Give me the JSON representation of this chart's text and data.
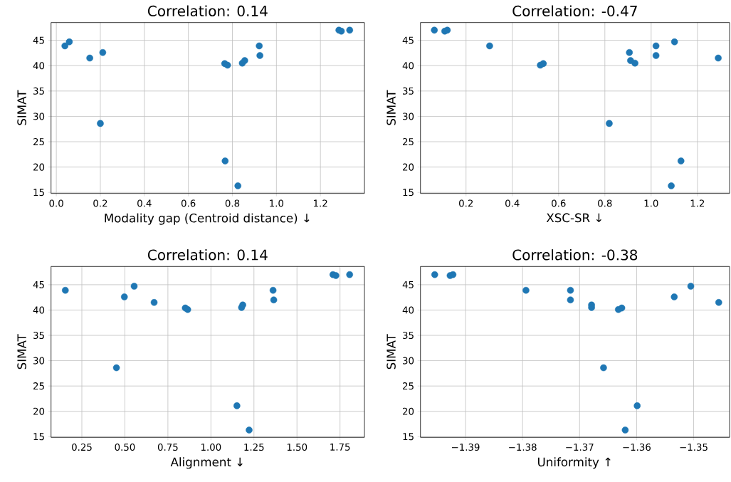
{
  "chart_data": [
    {
      "type": "scatter",
      "title": "Correlation: 0.14",
      "xlabel": "Modality gap (Centroid distance) ↓",
      "ylabel": "SIMAT",
      "color": "#1f77b4",
      "marker": "circle",
      "grid": true,
      "x": [
        0.039,
        0.059,
        0.152,
        0.211,
        0.2,
        0.765,
        0.778,
        0.767,
        0.825,
        0.845,
        0.856,
        0.922,
        0.925,
        1.284,
        1.295,
        1.333
      ],
      "values": [
        43.9,
        44.7,
        41.5,
        42.6,
        28.6,
        40.4,
        40.1,
        21.2,
        16.3,
        40.5,
        41.0,
        43.9,
        42.0,
        47.0,
        46.8,
        47.0
      ],
      "xlim": [
        -0.024,
        1.4
      ],
      "ylim": [
        14.8,
        48.5
      ],
      "xticks": [
        {
          "value": 0,
          "label": "0.0"
        },
        0.2,
        0.4,
        0.6,
        0.8,
        {
          "value": 1,
          "label": "1.0"
        },
        1.2
      ],
      "yticks": [
        15,
        20,
        25,
        30,
        35,
        40,
        45
      ]
    },
    {
      "type": "scatter",
      "title": "Correlation: -0.47",
      "xlabel": "XSC-SR ↓",
      "ylabel": "SIMAT",
      "color": "#1f77b4",
      "marker": "circle",
      "grid": true,
      "x": [
        0.063,
        0.108,
        0.119,
        0.302,
        0.521,
        0.534,
        0.819,
        0.906,
        0.911,
        0.93,
        1.021,
        1.021,
        1.101,
        1.29,
        1.129,
        1.087
      ],
      "values": [
        47.0,
        46.8,
        47.0,
        43.9,
        40.1,
        40.4,
        28.6,
        42.6,
        41.0,
        40.5,
        43.9,
        42.0,
        44.7,
        41.5,
        21.2,
        16.3
      ],
      "xlim": [
        0.003,
        1.339
      ],
      "ylim": [
        14.8,
        48.5
      ],
      "xticks": [
        0.2,
        0.4,
        0.6,
        0.8,
        {
          "value": 1,
          "label": "1.0"
        },
        1.2
      ],
      "yticks": [
        15,
        20,
        25,
        30,
        35,
        40,
        45
      ]
    },
    {
      "type": "scatter",
      "title": "Correlation: 0.14",
      "xlabel": "Alignment ↓",
      "ylabel": "SIMAT",
      "color": "#1f77b4",
      "marker": "circle",
      "grid": true,
      "x": [
        0.154,
        0.451,
        0.497,
        0.554,
        0.67,
        0.851,
        0.865,
        1.151,
        1.178,
        1.185,
        1.222,
        1.361,
        1.365,
        1.709,
        1.726,
        1.806
      ],
      "values": [
        43.9,
        28.6,
        42.6,
        44.7,
        41.5,
        40.4,
        40.1,
        21.1,
        40.5,
        41.0,
        16.3,
        43.9,
        42.0,
        47.0,
        46.8,
        47.0
      ],
      "xlim": [
        0.071,
        1.892
      ],
      "ylim": [
        14.86,
        48.6
      ],
      "xticks": [
        0.25,
        {
          "value": 0.5,
          "label": "0.50"
        },
        0.75,
        {
          "value": 1,
          "label": "1.00"
        },
        1.25,
        {
          "value": 1.5,
          "label": "1.50"
        },
        1.75
      ],
      "yticks": [
        15,
        20,
        25,
        30,
        35,
        40,
        45
      ]
    },
    {
      "type": "scatter",
      "title": "Correlation: -0.38",
      "xlabel": "Uniformity ↑",
      "ylabel": "SIMAT",
      "color": "#1f77b4",
      "marker": "circle",
      "grid": true,
      "x": [
        -1.3954,
        -1.3927,
        -1.3922,
        -1.3794,
        -1.3716,
        -1.3716,
        -1.3679,
        -1.3679,
        -1.3658,
        -1.3632,
        -1.3626,
        -1.3599,
        -1.362,
        -1.3534,
        -1.3505,
        -1.3456
      ],
      "values": [
        47.0,
        46.8,
        47.0,
        43.9,
        43.9,
        42.0,
        41.0,
        40.5,
        28.6,
        40.1,
        40.4,
        21.1,
        16.3,
        42.6,
        44.7,
        41.5
      ],
      "xlim": [
        -1.3979,
        -1.3437
      ],
      "ylim": [
        14.86,
        48.6
      ],
      "xticks": [
        {
          "value": -1.39,
          "label": "−1.39"
        },
        {
          "value": -1.38,
          "label": "−1.38"
        },
        {
          "value": -1.37,
          "label": "−1.37"
        },
        {
          "value": -1.36,
          "label": "−1.36"
        },
        {
          "value": -1.35,
          "label": "−1.35"
        }
      ],
      "yticks": [
        15,
        20,
        25,
        30,
        35,
        40,
        45
      ]
    }
  ]
}
